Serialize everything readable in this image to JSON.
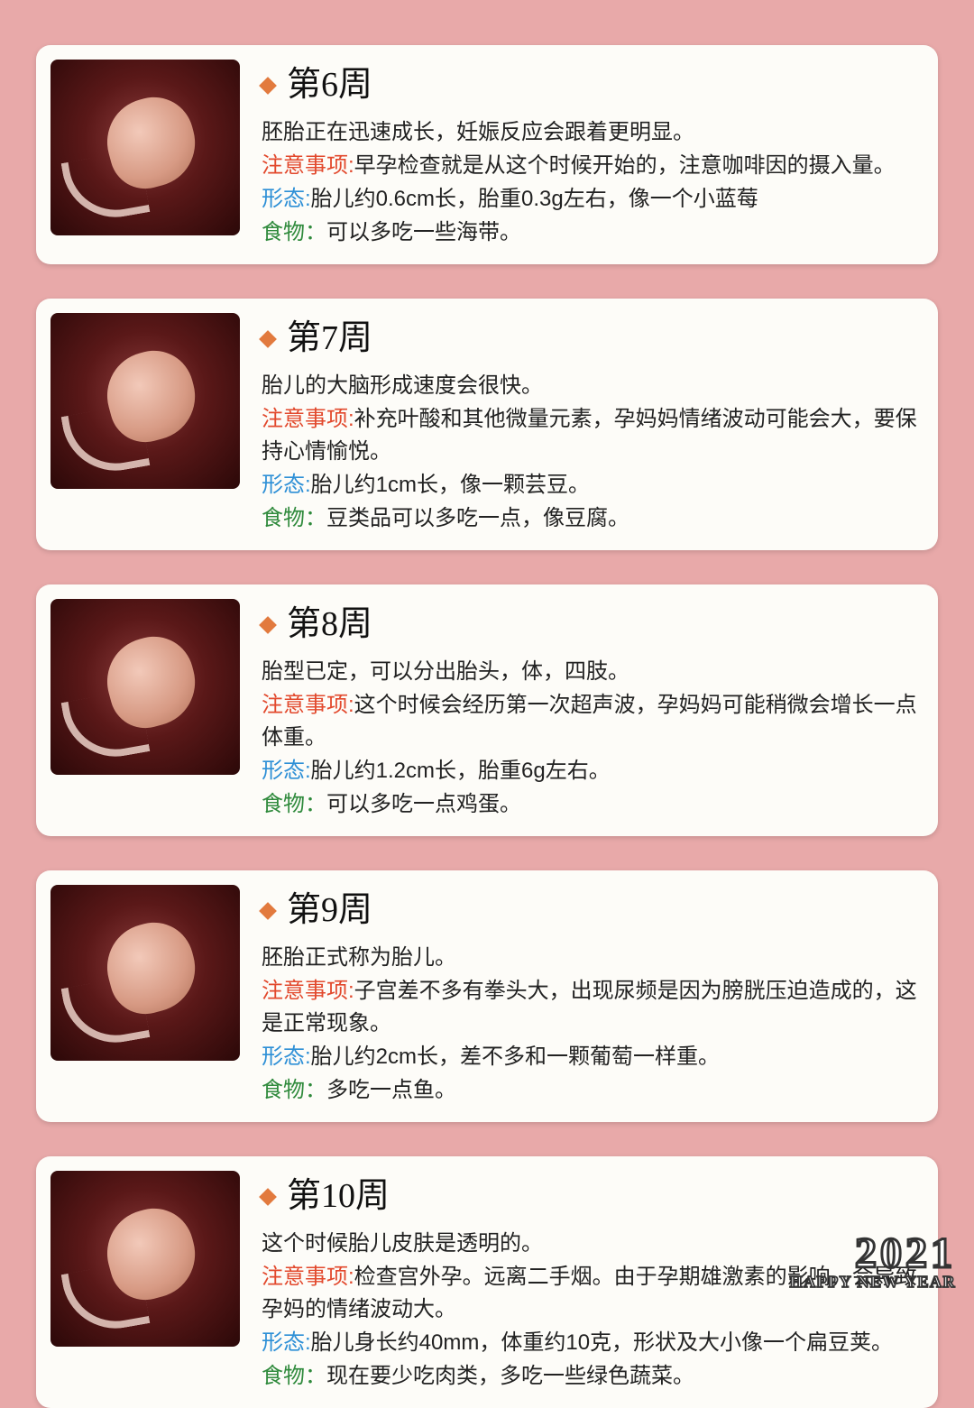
{
  "colors": {
    "page_bg": "#e8a9a9",
    "card_bg": "#fdfcf8",
    "bullet": "#e27a3e",
    "note_label": "#e2492d",
    "form_label": "#2d8fd6",
    "food_label": "#2f8a3c",
    "text": "#222222"
  },
  "labels": {
    "note": "注意事项:",
    "form": "形态:",
    "food": "食物："
  },
  "weeks": [
    {
      "title": "第6周",
      "desc": "胚胎正在迅速成长，妊娠反应会跟着更明显。",
      "note": "早孕检查就是从这个时候开始的，注意咖啡因的摄入量。",
      "form": "胎儿约0.6cm长，胎重0.3g左右，像一个小蓝莓",
      "food": "可以多吃一些海带。"
    },
    {
      "title": "第7周",
      "desc": "胎儿的大脑形成速度会很快。",
      "note": "补充叶酸和其他微量元素，孕妈妈情绪波动可能会大，要保持心情愉悦。",
      "form": "胎儿约1cm长，像一颗芸豆。",
      "food": "豆类品可以多吃一点，像豆腐。"
    },
    {
      "title": "第8周",
      "desc": "胎型已定，可以分出胎头，体，四肢。",
      "note": "这个时候会经历第一次超声波，孕妈妈可能稍微会增长一点体重。",
      "form": "胎儿约1.2cm长，胎重6g左右。",
      "food": "可以多吃一点鸡蛋。"
    },
    {
      "title": "第9周",
      "desc": "胚胎正式称为胎儿。",
      "note": "子宫差不多有拳头大，出现尿频是因为膀胱压迫造成的，这是正常现象。",
      "form": "胎儿约2cm长，差不多和一颗葡萄一样重。",
      "food": "多吃一点鱼。"
    },
    {
      "title": "第10周",
      "desc": "这个时候胎儿皮肤是透明的。",
      "note": "检查宫外孕。远离二手烟。由于孕期雄激素的影响，会导致孕妈的情绪波动大。",
      "form": "胎儿身长约40mm，体重约10克，形状及大小像一个扁豆荚。",
      "food": "现在要少吃肉类，多吃一些绿色蔬菜。"
    }
  ],
  "footer": {
    "year": "2021",
    "text": "HAPPY NEW YEAR"
  }
}
